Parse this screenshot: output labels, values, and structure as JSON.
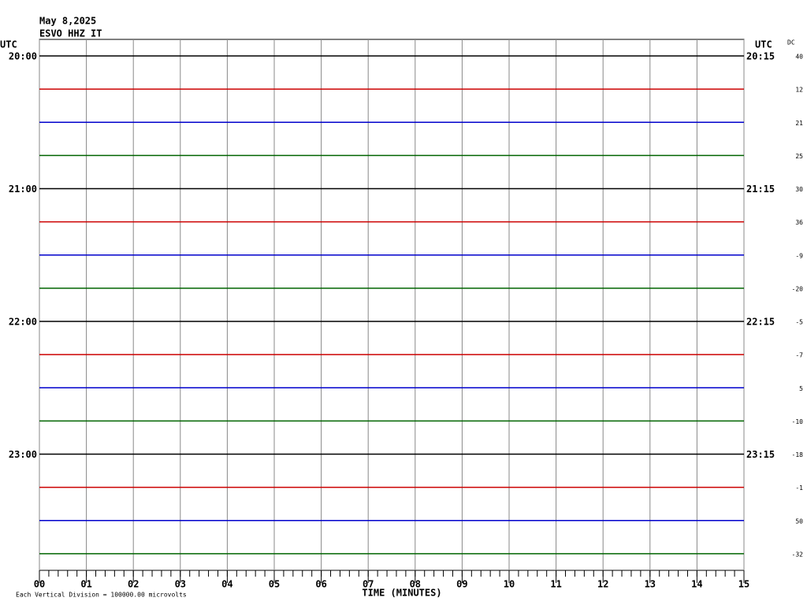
{
  "chart_data": {
    "type": "helicorder",
    "date": "May 8,2025",
    "station": "ESVO HHZ IT",
    "left_axis_label": "UTC",
    "right_axis_label": "UTC",
    "dc_label": "DC",
    "xlabel": "TIME (MINUTES)",
    "scale_note": "Each Vertical Division = 100000.00 microvolts",
    "xlim": [
      0,
      15
    ],
    "xticks": [
      {
        "value": 0,
        "label": "00"
      },
      {
        "value": 1,
        "label": "01"
      },
      {
        "value": 2,
        "label": "02"
      },
      {
        "value": 3,
        "label": "03"
      },
      {
        "value": 4,
        "label": "04"
      },
      {
        "value": 5,
        "label": "05"
      },
      {
        "value": 6,
        "label": "06"
      },
      {
        "value": 7,
        "label": "07"
      },
      {
        "value": 8,
        "label": "08"
      },
      {
        "value": 9,
        "label": "09"
      },
      {
        "value": 10,
        "label": "10"
      },
      {
        "value": 11,
        "label": "11"
      },
      {
        "value": 12,
        "label": "12"
      },
      {
        "value": 13,
        "label": "13"
      },
      {
        "value": 14,
        "label": "14"
      },
      {
        "value": 15,
        "label": "15"
      }
    ],
    "grid": true,
    "rows": [
      {
        "left_label": "20:00",
        "right_label": "20:15",
        "dc": 40,
        "color": "#000000"
      },
      {
        "left_label": null,
        "right_label": null,
        "dc": 12,
        "color": "#cc0000"
      },
      {
        "left_label": null,
        "right_label": null,
        "dc": 21,
        "color": "#0000cc"
      },
      {
        "left_label": null,
        "right_label": null,
        "dc": 25,
        "color": "#006400"
      },
      {
        "left_label": "21:00",
        "right_label": "21:15",
        "dc": 30,
        "color": "#000000"
      },
      {
        "left_label": null,
        "right_label": null,
        "dc": 36,
        "color": "#cc0000"
      },
      {
        "left_label": null,
        "right_label": null,
        "dc": -9,
        "color": "#0000cc"
      },
      {
        "left_label": null,
        "right_label": null,
        "dc": -20,
        "color": "#006400"
      },
      {
        "left_label": "22:00",
        "right_label": "22:15",
        "dc": -5,
        "color": "#000000"
      },
      {
        "left_label": null,
        "right_label": null,
        "dc": -7,
        "color": "#cc0000"
      },
      {
        "left_label": null,
        "right_label": null,
        "dc": 5,
        "color": "#0000cc"
      },
      {
        "left_label": null,
        "right_label": null,
        "dc": -10,
        "color": "#006400"
      },
      {
        "left_label": "23:00",
        "right_label": "23:15",
        "dc": -18,
        "color": "#000000"
      },
      {
        "left_label": null,
        "right_label": null,
        "dc": -1,
        "color": "#cc0000"
      },
      {
        "left_label": null,
        "right_label": null,
        "dc": 50,
        "color": "#0000cc"
      },
      {
        "left_label": null,
        "right_label": null,
        "dc": -32,
        "color": "#006400"
      }
    ]
  }
}
